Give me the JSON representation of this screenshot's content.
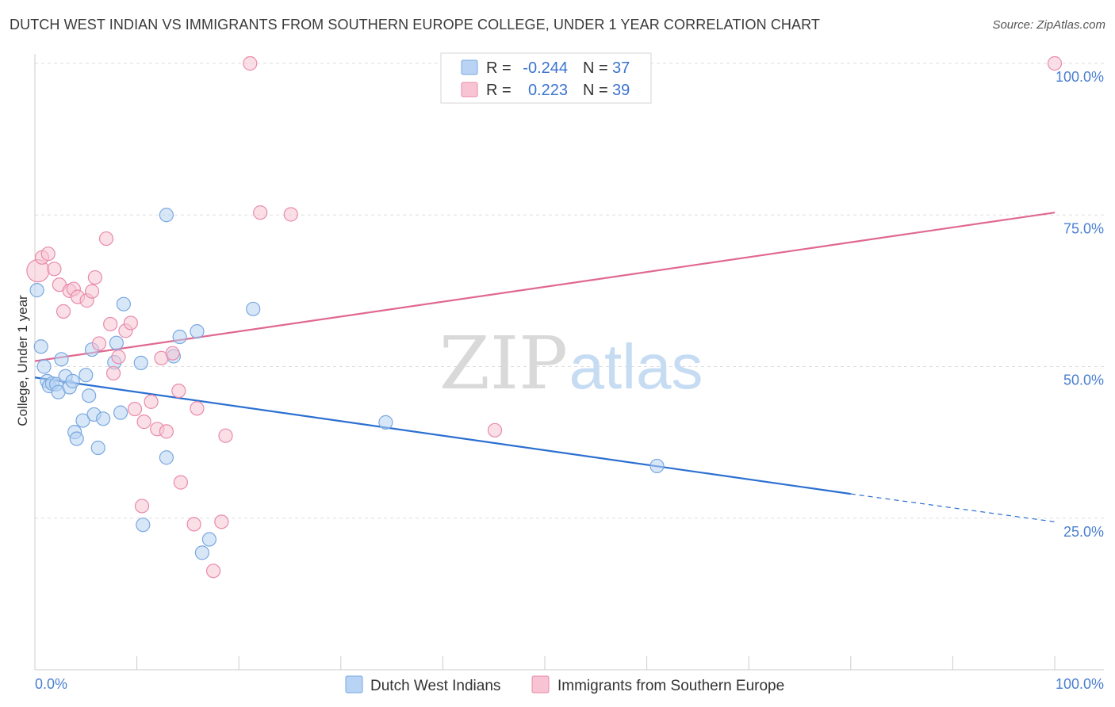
{
  "title": "DUTCH WEST INDIAN VS IMMIGRANTS FROM SOUTHERN EUROPE COLLEGE, UNDER 1 YEAR CORRELATION CHART",
  "source": "Source: ZipAtlas.com",
  "watermark": {
    "zip": "ZIP",
    "atlas": "atlas"
  },
  "colors": {
    "blue_fill": "#b8d3f3",
    "blue_stroke": "#7aa8e0",
    "blue_line": "#2b6fd1",
    "pink_fill": "#f8c4d4",
    "pink_stroke": "#e88aab",
    "pink_line": "#e0688f",
    "grid": "#dddddd",
    "axis_label": "#4a7fd0"
  },
  "legend_box": {
    "rows": [
      {
        "r_label": "R =",
        "r_value": "-0.244",
        "n_label": "N =",
        "n_value": "37"
      },
      {
        "r_label": "R =",
        "r_value": "0.223",
        "n_label": "N =",
        "n_value": "39"
      }
    ]
  },
  "chart_data": {
    "type": "scatter",
    "title": "DUTCH WEST INDIAN VS IMMIGRANTS FROM SOUTHERN EUROPE COLLEGE, UNDER 1 YEAR CORRELATION CHART",
    "xlabel": "",
    "ylabel": "College, Under 1 year",
    "xlim": [
      0,
      100
    ],
    "ylim": [
      0,
      105
    ],
    "x_tick_labels": [
      "0.0%",
      "100.0%"
    ],
    "y_ticks": [
      25,
      50,
      75,
      100
    ],
    "y_tick_labels": [
      "25.0%",
      "50.0%",
      "75.0%",
      "100.0%"
    ],
    "grid": true,
    "legend_position": "top-center",
    "series": [
      {
        "name": "Dutch West Indians",
        "color": "#7aa8e0",
        "r": -0.244,
        "n": 37,
        "trend": {
          "x0": 0,
          "y0": 48.2,
          "x1": 80,
          "y1": 29.0,
          "dashed_to_x": 100,
          "dashed_to_y": 24.4
        },
        "points": [
          [
            0.2,
            62.6
          ],
          [
            0.6,
            53.3
          ],
          [
            0.9,
            50.0
          ],
          [
            1.2,
            47.6
          ],
          [
            1.4,
            46.8
          ],
          [
            1.7,
            47.2
          ],
          [
            2.1,
            47.1
          ],
          [
            2.3,
            45.8
          ],
          [
            2.6,
            51.2
          ],
          [
            3.0,
            48.4
          ],
          [
            3.4,
            46.6
          ],
          [
            3.7,
            47.6
          ],
          [
            3.9,
            39.2
          ],
          [
            4.1,
            38.1
          ],
          [
            4.7,
            41.1
          ],
          [
            5.0,
            48.6
          ],
          [
            5.3,
            45.2
          ],
          [
            5.6,
            52.8
          ],
          [
            5.8,
            42.1
          ],
          [
            6.2,
            36.6
          ],
          [
            6.7,
            41.4
          ],
          [
            7.8,
            50.7
          ],
          [
            8.0,
            53.9
          ],
          [
            8.4,
            42.4
          ],
          [
            8.7,
            60.3
          ],
          [
            10.4,
            50.6
          ],
          [
            10.6,
            23.9
          ],
          [
            12.9,
            75.0
          ],
          [
            12.9,
            35.0
          ],
          [
            13.6,
            51.7
          ],
          [
            14.2,
            54.9
          ],
          [
            15.9,
            55.8
          ],
          [
            16.4,
            19.3
          ],
          [
            17.1,
            21.5
          ],
          [
            21.4,
            59.5
          ],
          [
            34.4,
            40.8
          ],
          [
            61.0,
            33.6
          ]
        ]
      },
      {
        "name": "Immigrants from Southern Europe",
        "color": "#e88aab",
        "r": 0.223,
        "n": 39,
        "trend": {
          "x0": 0,
          "y0": 50.9,
          "x1": 100,
          "y1": 75.4
        },
        "points": [
          [
            0.3,
            65.8
          ],
          [
            0.7,
            68.0
          ],
          [
            1.3,
            68.6
          ],
          [
            1.9,
            66.1
          ],
          [
            2.4,
            63.5
          ],
          [
            2.8,
            59.1
          ],
          [
            3.4,
            62.5
          ],
          [
            3.8,
            62.8
          ],
          [
            4.2,
            61.5
          ],
          [
            5.1,
            60.9
          ],
          [
            5.6,
            62.4
          ],
          [
            5.9,
            64.7
          ],
          [
            6.3,
            53.8
          ],
          [
            7.0,
            71.1
          ],
          [
            7.4,
            57.0
          ],
          [
            7.7,
            48.9
          ],
          [
            8.2,
            51.6
          ],
          [
            8.9,
            55.9
          ],
          [
            9.4,
            57.2
          ],
          [
            9.8,
            43.0
          ],
          [
            10.5,
            27.0
          ],
          [
            10.7,
            40.9
          ],
          [
            11.4,
            44.2
          ],
          [
            12.0,
            39.7
          ],
          [
            12.4,
            51.4
          ],
          [
            12.9,
            39.3
          ],
          [
            13.5,
            52.2
          ],
          [
            14.1,
            46.0
          ],
          [
            14.3,
            30.9
          ],
          [
            15.6,
            24.0
          ],
          [
            15.9,
            43.1
          ],
          [
            17.5,
            16.3
          ],
          [
            18.3,
            24.4
          ],
          [
            18.7,
            38.6
          ],
          [
            21.1,
            100.0
          ],
          [
            22.1,
            75.4
          ],
          [
            25.1,
            75.1
          ],
          [
            45.1,
            39.5
          ],
          [
            100.0,
            100.0
          ]
        ]
      }
    ]
  }
}
